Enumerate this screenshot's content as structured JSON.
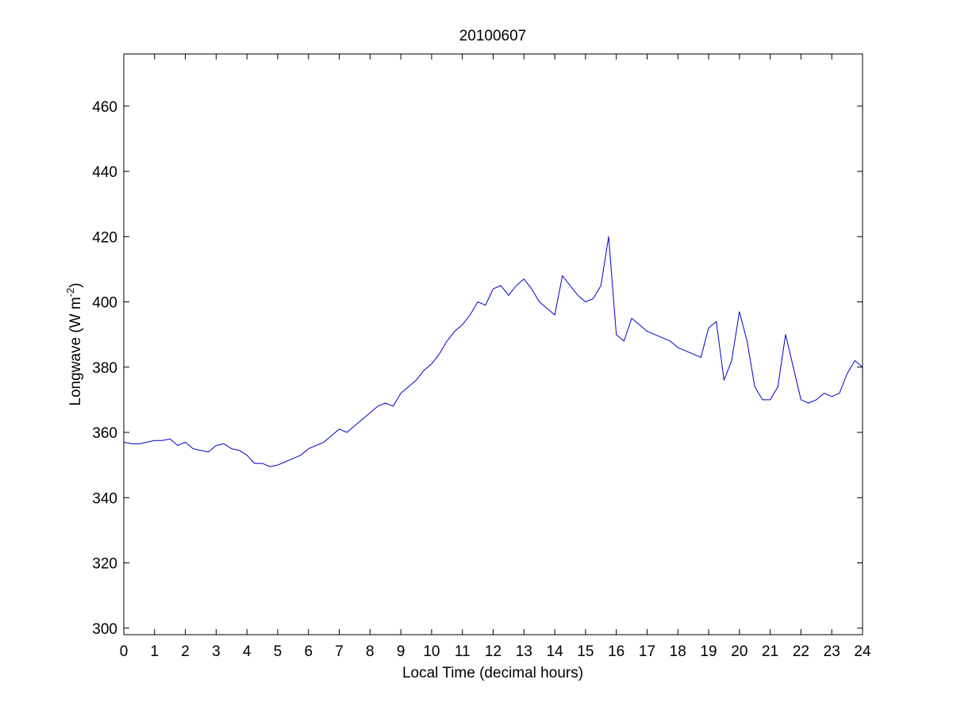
{
  "chart_data": {
    "type": "line",
    "title": "20100607",
    "xlabel": "Local Time (decimal hours)",
    "ylabel": "Longwave (W m",
    "ylabel_superscript": "-2",
    "ylabel_suffix": ")",
    "xlim": [
      0,
      24
    ],
    "ylim": [
      298,
      476
    ],
    "xticks": [
      0,
      1,
      2,
      3,
      4,
      5,
      6,
      7,
      8,
      9,
      10,
      11,
      12,
      13,
      14,
      15,
      16,
      17,
      18,
      19,
      20,
      21,
      22,
      23,
      24
    ],
    "yticks": [
      300,
      320,
      340,
      360,
      380,
      400,
      420,
      440,
      460
    ],
    "grid": false,
    "line_color": "#0000cc",
    "series": [
      {
        "x": [
          0,
          0.25,
          0.5,
          0.75,
          1,
          1.25,
          1.5,
          1.75,
          2,
          2.25,
          2.5,
          2.75,
          3,
          3.25,
          3.5,
          3.75,
          4,
          4.25,
          4.5,
          4.75,
          5,
          5.25,
          5.5,
          5.75,
          6,
          6.25,
          6.5,
          6.75,
          7,
          7.25,
          7.5,
          7.75,
          8,
          8.25,
          8.5,
          8.75,
          9,
          9.25,
          9.5,
          9.75,
          10,
          10.25,
          10.5,
          10.75,
          11,
          11.25,
          11.5,
          11.75,
          12,
          12.25,
          12.5,
          12.75,
          13,
          13.25,
          13.5,
          13.75,
          14,
          14.25,
          14.5,
          14.75,
          15,
          15.25,
          15.5,
          15.75,
          16,
          16.25,
          16.5,
          16.75,
          17,
          17.25,
          17.5,
          17.75,
          18,
          18.25,
          18.5,
          18.75,
          19,
          19.25,
          19.5,
          19.75,
          20,
          20.25,
          20.5,
          20.75,
          21,
          21.25,
          21.5,
          21.75,
          22,
          22.25,
          22.5,
          22.75,
          23,
          23.25,
          23.5,
          23.75,
          24
        ],
        "y": [
          357,
          356.5,
          356.5,
          357,
          357.5,
          357.5,
          358,
          356,
          357,
          355,
          354.5,
          354,
          356,
          356.5,
          355,
          354.5,
          353,
          350.5,
          350.5,
          349.5,
          350,
          351,
          352,
          353,
          355,
          356,
          357,
          359,
          361,
          360,
          362,
          364,
          366,
          368,
          369,
          368,
          372,
          374,
          376,
          379,
          381,
          384,
          388,
          391,
          393,
          396,
          400,
          399,
          404,
          405,
          402,
          405,
          407,
          404,
          400,
          398,
          396,
          408,
          405,
          402,
          400,
          401,
          405,
          420,
          390,
          388,
          395,
          393,
          391,
          390,
          389,
          388,
          386,
          385,
          384,
          383,
          392,
          394,
          376,
          382,
          397,
          388,
          374,
          370,
          370,
          374,
          390,
          380,
          370,
          369,
          370,
          372,
          371,
          372,
          378,
          382,
          380
        ]
      }
    ]
  }
}
